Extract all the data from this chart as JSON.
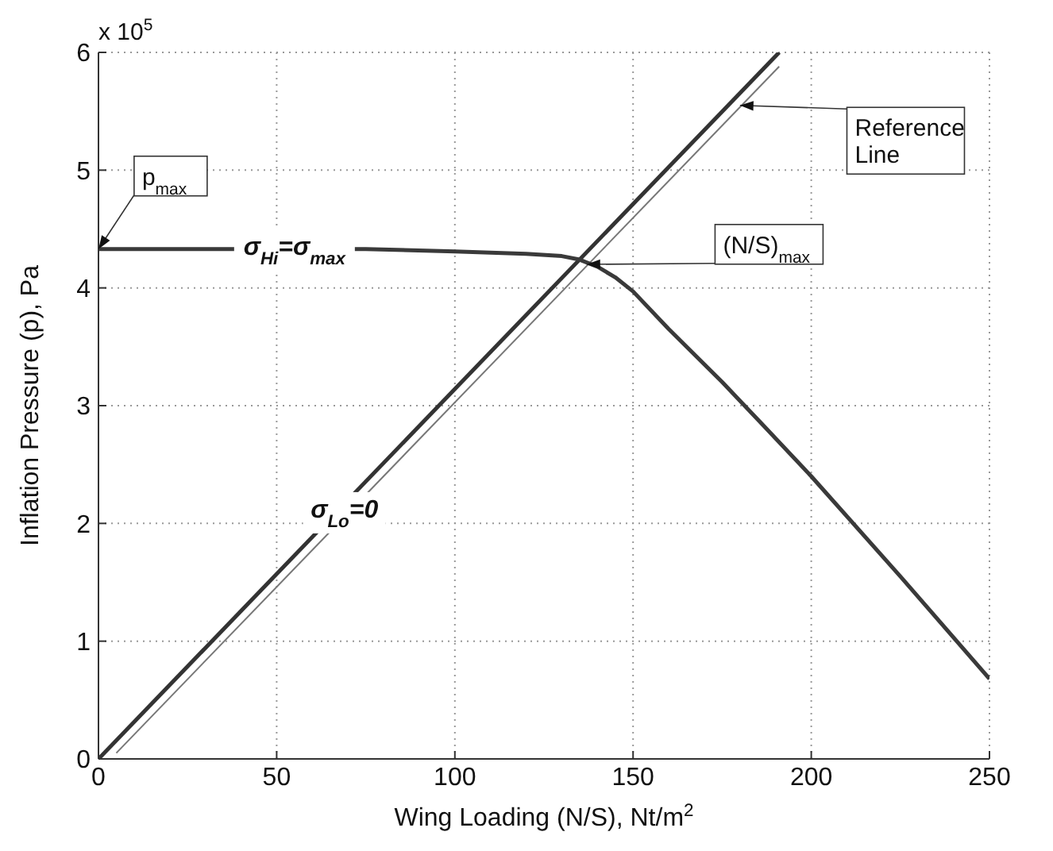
{
  "chart_data": {
    "type": "line",
    "xlabel": "Wing Loading (N/S), Nt/m$^{2}$",
    "ylabel": "Inflation Pressure (p), Pa",
    "xlim": [
      0,
      250
    ],
    "xticks": [
      0,
      50,
      100,
      150,
      200,
      250
    ],
    "ylim": [
      0,
      6
    ],
    "yticks": [
      0,
      1,
      2,
      3,
      4,
      5,
      6
    ],
    "grid": true,
    "marker": "none",
    "line_style": "solid",
    "series": [
      {
        "name": "σ$_{Lo}$=0",
        "color": "#333333",
        "x": [
          0,
          191
        ],
        "values": [
          0,
          6
        ]
      },
      {
        "name": "Reference Line",
        "color": "#777777",
        "x": [
          5,
          191
        ],
        "values": [
          0.05,
          5.88
        ]
      },
      {
        "name": "σ$_{Hi}$=σ$_{max}$",
        "color": "#3a3a3a",
        "x": [
          0,
          75,
          100,
          120,
          130,
          135,
          140,
          145,
          150,
          160,
          175,
          186,
          200,
          225,
          250
        ],
        "values": [
          4.33,
          4.33,
          4.31,
          4.29,
          4.27,
          4.24,
          4.18,
          4.09,
          3.97,
          3.65,
          3.2,
          2.85,
          2.4,
          1.55,
          0.68
        ]
      }
    ],
    "annotations": [
      "x 10$^{5}$",
      {
        "text": "p$_{max}$",
        "x": 0,
        "y": 4.33
      },
      {
        "text": "(N/S)$_{max}$",
        "x": 137,
        "y": 4.2
      }
    ]
  }
}
